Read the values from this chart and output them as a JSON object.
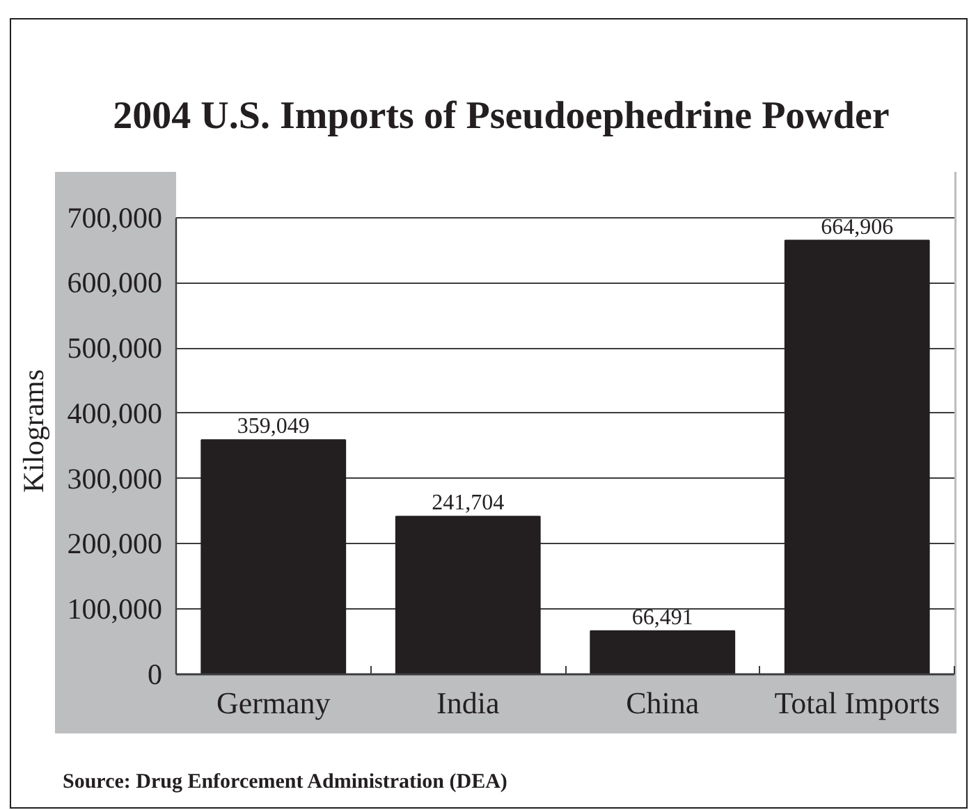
{
  "chart_data": {
    "type": "bar",
    "title": "2004 U.S. Imports of Pseudoephedrine Powder",
    "ylabel": "Kilograms",
    "categories": [
      "Germany",
      "India",
      "China",
      "Total Imports"
    ],
    "values": [
      359049,
      241704,
      66491,
      664906
    ],
    "color": "#231f20",
    "value_labels": [
      "359,049",
      "241,704",
      "66,491",
      "664,906"
    ],
    "ylim": [
      0,
      770000
    ],
    "yticks": [
      0,
      {
        "value": 100000,
        "label": "100,000"
      },
      {
        "value": 200000,
        "label": "200,000"
      },
      {
        "value": 300000,
        "label": "300,000"
      },
      {
        "value": 400000,
        "label": "400,000"
      },
      {
        "value": 500000,
        "label": "500,000"
      },
      {
        "value": 600000,
        "label": "600,000"
      },
      {
        "value": 700000,
        "label": "700,000"
      }
    ],
    "grid": "y",
    "annotations": [
      "Source: Drug Enforcement Administration (DEA)"
    ]
  }
}
